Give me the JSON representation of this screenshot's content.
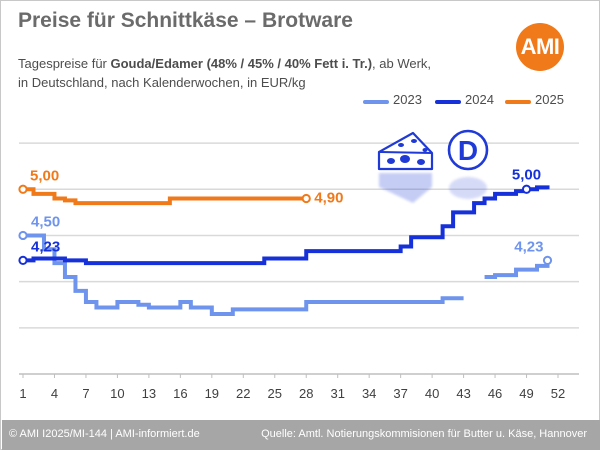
{
  "header": {
    "title": "Preise für Schnittkäse – Brotware",
    "subtitle_pre": "Tagespreise für ",
    "subtitle_bold": "Gouda/Edamer (48% / 45% / 40% Fett i. Tr.)",
    "subtitle_post": ", ab Werk,",
    "subtitle_line2": "in Deutschland, nach Kalenderwochen, in EUR/kg"
  },
  "logo": {
    "text": "AMI",
    "color": "#f07a1a"
  },
  "icons": [
    "cheese-icon",
    "germany-d-badge-icon"
  ],
  "footer": {
    "left": "© AMI I2025/MI-144 | AMI-informiert.de",
    "right": "Quelle: Amtl. Notierungskommisionen für Butter u. Käse, Hannover"
  },
  "chart_data": {
    "type": "line",
    "step": true,
    "x_ticks": [
      "1",
      "4",
      "7",
      "10",
      "13",
      "16",
      "19",
      "22",
      "25",
      "28",
      "31",
      "34",
      "37",
      "40",
      "43",
      "46",
      "49",
      "52"
    ],
    "xlim": [
      1,
      52
    ],
    "ylim": [
      3.0,
      5.75
    ],
    "grid": "horizontal",
    "y_tick_labels_shown": false,
    "legend_position": "top-right",
    "series": [
      {
        "name": "2023",
        "color": "#6f94ee",
        "segments": [
          [
            [
              1,
              4.5
            ],
            [
              2,
              4.5
            ],
            [
              3,
              4.35
            ],
            [
              4,
              4.2
            ],
            [
              5,
              4.05
            ],
            [
              6,
              3.9
            ],
            [
              7,
              3.78
            ],
            [
              8,
              3.72
            ],
            [
              9,
              3.72
            ],
            [
              10,
              3.78
            ],
            [
              11,
              3.78
            ],
            [
              12,
              3.75
            ],
            [
              13,
              3.72
            ],
            [
              14,
              3.72
            ],
            [
              15,
              3.72
            ],
            [
              16,
              3.78
            ],
            [
              17,
              3.72
            ],
            [
              18,
              3.72
            ],
            [
              19,
              3.65
            ],
            [
              20,
              3.65
            ],
            [
              21,
              3.7
            ],
            [
              22,
              3.7
            ],
            [
              23,
              3.7
            ],
            [
              24,
              3.7
            ],
            [
              25,
              3.7
            ],
            [
              26,
              3.7
            ],
            [
              27,
              3.7
            ],
            [
              28,
              3.78
            ],
            [
              29,
              3.78
            ],
            [
              30,
              3.78
            ],
            [
              31,
              3.78
            ],
            [
              32,
              3.78
            ],
            [
              33,
              3.78
            ],
            [
              34,
              3.78
            ],
            [
              35,
              3.78
            ],
            [
              36,
              3.78
            ],
            [
              37,
              3.78
            ],
            [
              38,
              3.78
            ],
            [
              39,
              3.78
            ],
            [
              40,
              3.78
            ],
            [
              41,
              3.82
            ],
            [
              42,
              3.82
            ],
            [
              43,
              3.82
            ]
          ],
          [
            [
              45,
              4.05
            ],
            [
              46,
              4.07
            ],
            [
              47,
              4.07
            ],
            [
              48,
              4.13
            ],
            [
              49,
              4.13
            ],
            [
              50,
              4.17
            ],
            [
              51,
              4.23
            ]
          ]
        ],
        "labels": [
          {
            "week": 1,
            "text": "4,50"
          },
          {
            "week": 51,
            "text": "4,23"
          }
        ]
      },
      {
        "name": "2024",
        "color": "#1631d9",
        "segments": [
          [
            [
              1,
              4.23
            ],
            [
              2,
              4.25
            ],
            [
              3,
              4.25
            ],
            [
              4,
              4.25
            ],
            [
              5,
              4.23
            ],
            [
              6,
              4.23
            ],
            [
              7,
              4.2
            ],
            [
              8,
              4.2
            ],
            [
              9,
              4.2
            ],
            [
              10,
              4.2
            ],
            [
              11,
              4.2
            ],
            [
              12,
              4.2
            ],
            [
              13,
              4.2
            ],
            [
              14,
              4.2
            ],
            [
              15,
              4.2
            ],
            [
              16,
              4.2
            ],
            [
              17,
              4.2
            ],
            [
              18,
              4.2
            ],
            [
              19,
              4.2
            ],
            [
              20,
              4.2
            ],
            [
              21,
              4.2
            ],
            [
              22,
              4.2
            ],
            [
              23,
              4.2
            ],
            [
              24,
              4.25
            ],
            [
              25,
              4.25
            ],
            [
              26,
              4.25
            ],
            [
              27,
              4.25
            ],
            [
              28,
              4.33
            ],
            [
              29,
              4.33
            ],
            [
              30,
              4.33
            ],
            [
              31,
              4.33
            ],
            [
              32,
              4.33
            ],
            [
              33,
              4.33
            ],
            [
              34,
              4.33
            ],
            [
              35,
              4.33
            ],
            [
              36,
              4.33
            ],
            [
              37,
              4.38
            ],
            [
              38,
              4.48
            ],
            [
              39,
              4.48
            ],
            [
              40,
              4.48
            ],
            [
              41,
              4.6
            ],
            [
              42,
              4.75
            ],
            [
              43,
              4.75
            ],
            [
              44,
              4.85
            ],
            [
              45,
              4.9
            ],
            [
              46,
              4.95
            ],
            [
              47,
              4.95
            ],
            [
              48,
              4.98
            ],
            [
              49,
              5.0
            ],
            [
              50,
              5.02
            ],
            [
              51,
              5.0
            ]
          ]
        ],
        "labels": [
          {
            "week": 1,
            "text": "4,23"
          },
          {
            "week": 49,
            "text": "5,00"
          }
        ]
      },
      {
        "name": "2025",
        "color": "#f07a1a",
        "segments": [
          [
            [
              1,
              5.0
            ],
            [
              2,
              4.95
            ],
            [
              3,
              4.95
            ],
            [
              4,
              4.9
            ],
            [
              5,
              4.88
            ],
            [
              6,
              4.85
            ],
            [
              7,
              4.85
            ],
            [
              8,
              4.85
            ],
            [
              9,
              4.85
            ],
            [
              10,
              4.85
            ],
            [
              11,
              4.85
            ],
            [
              12,
              4.85
            ],
            [
              13,
              4.85
            ],
            [
              14,
              4.85
            ],
            [
              15,
              4.9
            ],
            [
              16,
              4.9
            ],
            [
              17,
              4.9
            ],
            [
              18,
              4.9
            ],
            [
              19,
              4.9
            ],
            [
              20,
              4.9
            ],
            [
              21,
              4.9
            ],
            [
              22,
              4.9
            ],
            [
              23,
              4.9
            ],
            [
              24,
              4.9
            ],
            [
              25,
              4.9
            ],
            [
              26,
              4.9
            ],
            [
              27,
              4.9
            ],
            [
              28,
              4.9
            ]
          ]
        ],
        "labels": [
          {
            "week": 1,
            "text": "5,00"
          },
          {
            "week": 28,
            "text": "4,90"
          }
        ]
      }
    ]
  }
}
